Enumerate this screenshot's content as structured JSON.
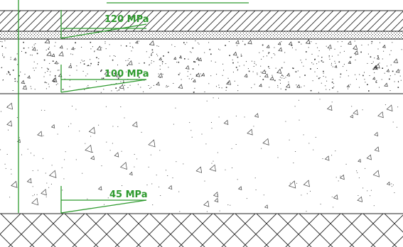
{
  "diagram": {
    "colors": {
      "line": "#222222",
      "arrow": "#2e9a2e",
      "label": "#2e9a2e",
      "background": "#ffffff"
    },
    "layers": [
      {
        "id": "top-layer",
        "pattern": "diagonal-hatch"
      },
      {
        "id": "thin-dotted-layer",
        "pattern": "dense-dots"
      },
      {
        "id": "concrete-layer",
        "pattern": "aggregate-speckle"
      },
      {
        "id": "subbase-layer",
        "pattern": "sparse-triangles"
      },
      {
        "id": "subgrade-layer",
        "pattern": "cross-hatch"
      }
    ],
    "stress_labels": [
      "120 MPa",
      "100 MPa",
      "45 MPa"
    ]
  }
}
